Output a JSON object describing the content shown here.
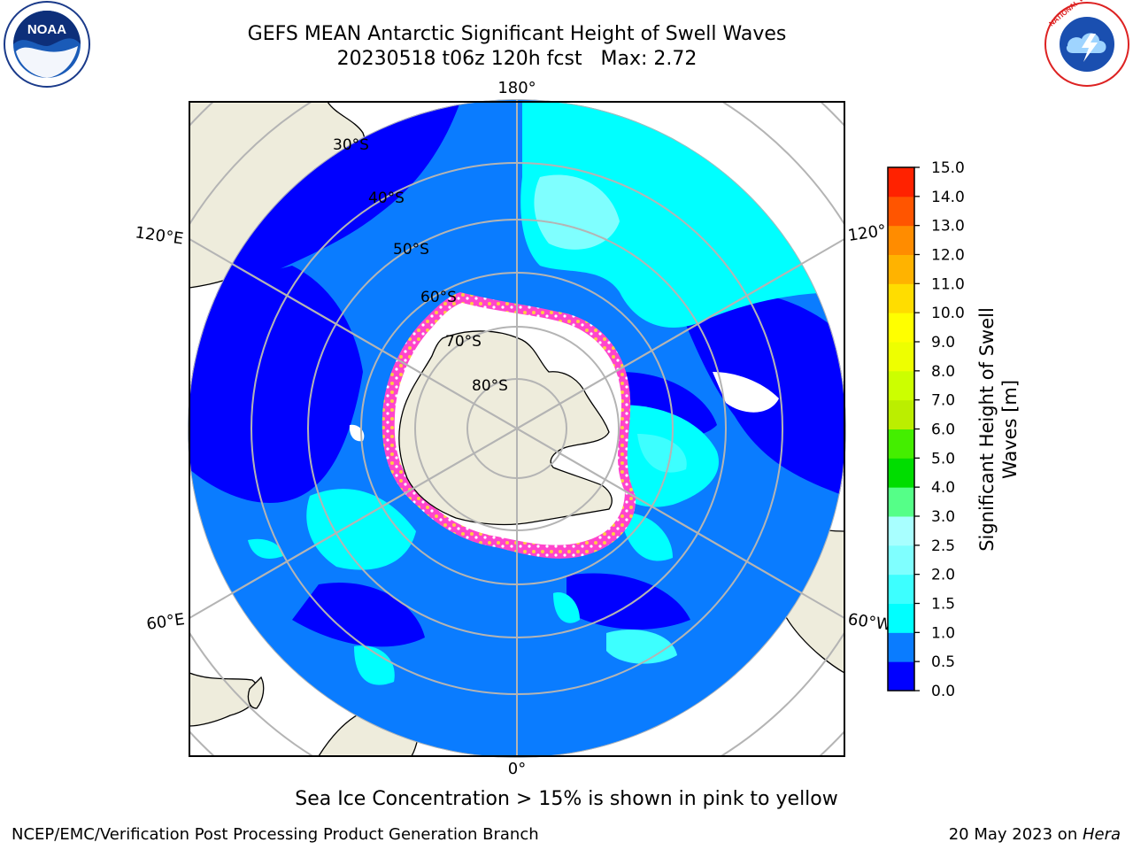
{
  "header": {
    "title": "GEFS MEAN Antarctic Significant Height of Swell Waves",
    "subtitle": "20230518 t06z 120h fcst   Max: 2.72"
  },
  "logos": {
    "noaa_text": "NOAA",
    "nws_text": "NATIONAL WEATHER SERVICE"
  },
  "map": {
    "projection": "south-polar-stereographic",
    "longitude_labels": {
      "top": "180°",
      "bottom": "0°",
      "upper_left": "120°E",
      "lower_left": "60°E",
      "upper_right": "120°",
      "lower_right": "60°W"
    },
    "latitude_labels": [
      "30°S",
      "40°S",
      "50°S",
      "60°S",
      "70°S",
      "80°S"
    ],
    "colors": {
      "land": "#eeecdc",
      "sea_ice": "#ffffff",
      "ice_edge": [
        "#ff44cc",
        "#ffcc44"
      ],
      "graticule": "#b4b4b4"
    }
  },
  "colorbar": {
    "title_line1": "Significant Height of Swell",
    "title_line2": "Waves [m]",
    "ticks": [
      "0.0",
      "0.5",
      "1.0",
      "1.5",
      "2.0",
      "2.5",
      "3.0",
      "4.0",
      "5.0",
      "6.0",
      "7.0",
      "8.0",
      "9.0",
      "10.0",
      "11.0",
      "12.0",
      "13.0",
      "14.0",
      "15.0"
    ],
    "colors": [
      "#0000ff",
      "#0a7cff",
      "#00ffff",
      "#3dffff",
      "#7fffff",
      "#a8ffff",
      "#55ff88",
      "#00dd00",
      "#44ee00",
      "#bbee00",
      "#ccff00",
      "#eeff00",
      "#ffff00",
      "#ffdd00",
      "#ffb300",
      "#ff8c00",
      "#ff5500",
      "#ff2200",
      "#ff0000"
    ]
  },
  "footer": {
    "note": "Sea Ice Concentration > 15% is shown in pink to yellow",
    "credit": "NCEP/EMC/Verification Post Processing Product Generation Branch",
    "date_prefix": "20 May 2023 on ",
    "host": "Hera"
  }
}
